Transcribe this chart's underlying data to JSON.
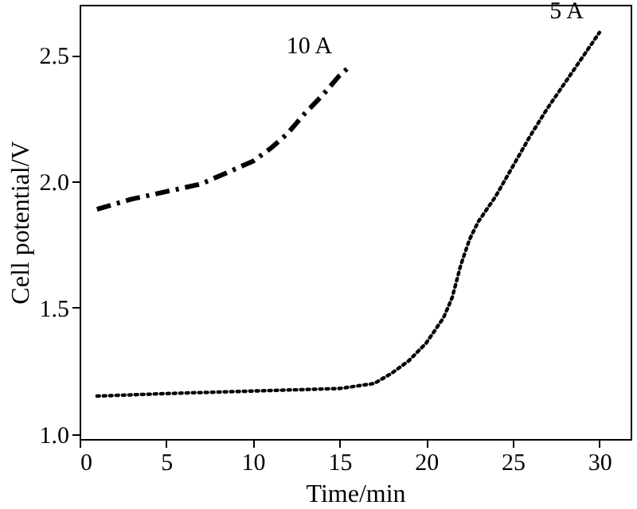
{
  "chart_data": {
    "type": "line",
    "xlabel": "Time/min",
    "ylabel": "Cell potential/V",
    "xlim": [
      0,
      31.8
    ],
    "ylim": [
      0.98,
      2.7
    ],
    "xticks": [
      0,
      5,
      10,
      15,
      20,
      25,
      30
    ],
    "yticks": [
      {
        "value": 1,
        "label": "1.0"
      },
      1.5,
      {
        "value": 2,
        "label": "2.0"
      },
      2.5
    ],
    "grid": false,
    "legend": false,
    "series": [
      {
        "name": "10 A",
        "color": "#000000",
        "line_style": "dashdot",
        "x": [
          1,
          3,
          5,
          7,
          9,
          10,
          11,
          12,
          13,
          14,
          15,
          15.5
        ],
        "values": [
          1.89,
          1.93,
          1.96,
          1.99,
          2.05,
          2.08,
          2.13,
          2.19,
          2.27,
          2.34,
          2.42,
          2.45
        ]
      },
      {
        "name": "5 A",
        "color": "#000000",
        "line_style": "dotted",
        "x": [
          1,
          5,
          10,
          15,
          17,
          18,
          19,
          20,
          21,
          21.5,
          22,
          22.5,
          23,
          24,
          25,
          26,
          27,
          28,
          29,
          30
        ],
        "values": [
          1.15,
          1.16,
          1.17,
          1.18,
          1.2,
          1.24,
          1.29,
          1.36,
          1.46,
          1.54,
          1.67,
          1.77,
          1.84,
          1.94,
          2.06,
          2.18,
          2.29,
          2.39,
          2.49,
          2.59
        ]
      }
    ]
  }
}
